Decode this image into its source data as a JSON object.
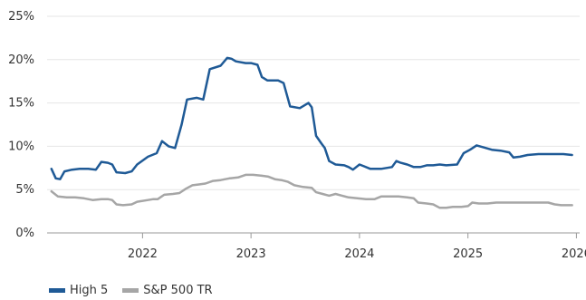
{
  "chart_data": {
    "type": "line",
    "title": "",
    "xlabel": "",
    "ylabel": "",
    "xlim": [
      2021.12,
      2026.03
    ],
    "ylim": [
      0,
      25
    ],
    "grid": true,
    "legend_position": "bottom-left",
    "y_tick_labels": [
      "0%",
      "5%",
      "10%",
      "15%",
      "20%",
      "25%"
    ],
    "y_tick_values": [
      0,
      5,
      10,
      15,
      20,
      25
    ],
    "x_tick_labels": [
      "2022",
      "2023",
      "2024",
      "2025",
      "2026"
    ],
    "x_tick_values": [
      2022,
      2023,
      2024,
      2025,
      2026
    ],
    "series": [
      {
        "name": "High 5",
        "color": "#1f5a96",
        "points": [
          [
            2021.16,
            7.4
          ],
          [
            2021.2,
            6.3
          ],
          [
            2021.24,
            6.2
          ],
          [
            2021.28,
            7.1
          ],
          [
            2021.35,
            7.3
          ],
          [
            2021.42,
            7.4
          ],
          [
            2021.5,
            7.4
          ],
          [
            2021.57,
            7.3
          ],
          [
            2021.62,
            8.2
          ],
          [
            2021.68,
            8.1
          ],
          [
            2021.72,
            7.9
          ],
          [
            2021.76,
            7.0
          ],
          [
            2021.84,
            6.9
          ],
          [
            2021.9,
            7.1
          ],
          [
            2021.95,
            7.9
          ],
          [
            2022.05,
            8.8
          ],
          [
            2022.13,
            9.2
          ],
          [
            2022.18,
            10.6
          ],
          [
            2022.24,
            10.0
          ],
          [
            2022.3,
            9.8
          ],
          [
            2022.36,
            12.5
          ],
          [
            2022.41,
            15.4
          ],
          [
            2022.5,
            15.6
          ],
          [
            2022.56,
            15.4
          ],
          [
            2022.62,
            18.9
          ],
          [
            2022.72,
            19.3
          ],
          [
            2022.78,
            20.2
          ],
          [
            2022.82,
            20.1
          ],
          [
            2022.86,
            19.8
          ],
          [
            2022.95,
            19.6
          ],
          [
            2023.0,
            19.6
          ],
          [
            2023.06,
            19.4
          ],
          [
            2023.1,
            18.0
          ],
          [
            2023.15,
            17.6
          ],
          [
            2023.25,
            17.6
          ],
          [
            2023.3,
            17.3
          ],
          [
            2023.36,
            14.6
          ],
          [
            2023.45,
            14.4
          ],
          [
            2023.53,
            15.0
          ],
          [
            2023.56,
            14.5
          ],
          [
            2023.6,
            11.2
          ],
          [
            2023.65,
            10.3
          ],
          [
            2023.68,
            9.8
          ],
          [
            2023.72,
            8.3
          ],
          [
            2023.78,
            7.9
          ],
          [
            2023.86,
            7.8
          ],
          [
            2023.9,
            7.6
          ],
          [
            2023.94,
            7.3
          ],
          [
            2024.0,
            7.9
          ],
          [
            2024.04,
            7.7
          ],
          [
            2024.1,
            7.4
          ],
          [
            2024.2,
            7.4
          ],
          [
            2024.3,
            7.6
          ],
          [
            2024.34,
            8.3
          ],
          [
            2024.38,
            8.1
          ],
          [
            2024.44,
            7.9
          ],
          [
            2024.5,
            7.6
          ],
          [
            2024.56,
            7.6
          ],
          [
            2024.62,
            7.8
          ],
          [
            2024.68,
            7.8
          ],
          [
            2024.74,
            7.9
          ],
          [
            2024.8,
            7.8
          ],
          [
            2024.9,
            7.9
          ],
          [
            2024.96,
            9.2
          ],
          [
            2025.02,
            9.6
          ],
          [
            2025.08,
            10.1
          ],
          [
            2025.14,
            9.9
          ],
          [
            2025.22,
            9.6
          ],
          [
            2025.3,
            9.5
          ],
          [
            2025.38,
            9.3
          ],
          [
            2025.42,
            8.7
          ],
          [
            2025.48,
            8.8
          ],
          [
            2025.55,
            9.0
          ],
          [
            2025.65,
            9.1
          ],
          [
            2025.72,
            9.1
          ],
          [
            2025.8,
            9.1
          ],
          [
            2025.88,
            9.1
          ],
          [
            2025.96,
            9.0
          ]
        ]
      },
      {
        "name": "S&P 500 TR",
        "color": "#a6a6a6",
        "points": [
          [
            2021.16,
            4.8
          ],
          [
            2021.22,
            4.2
          ],
          [
            2021.3,
            4.1
          ],
          [
            2021.38,
            4.1
          ],
          [
            2021.46,
            4.0
          ],
          [
            2021.54,
            3.8
          ],
          [
            2021.62,
            3.9
          ],
          [
            2021.68,
            3.9
          ],
          [
            2021.72,
            3.8
          ],
          [
            2021.76,
            3.3
          ],
          [
            2021.82,
            3.2
          ],
          [
            2021.9,
            3.3
          ],
          [
            2021.95,
            3.6
          ],
          [
            2022.05,
            3.8
          ],
          [
            2022.1,
            3.9
          ],
          [
            2022.14,
            3.9
          ],
          [
            2022.2,
            4.4
          ],
          [
            2022.28,
            4.5
          ],
          [
            2022.34,
            4.6
          ],
          [
            2022.4,
            5.1
          ],
          [
            2022.46,
            5.5
          ],
          [
            2022.52,
            5.6
          ],
          [
            2022.58,
            5.7
          ],
          [
            2022.65,
            6.0
          ],
          [
            2022.72,
            6.1
          ],
          [
            2022.8,
            6.3
          ],
          [
            2022.88,
            6.4
          ],
          [
            2022.95,
            6.7
          ],
          [
            2023.02,
            6.7
          ],
          [
            2023.1,
            6.6
          ],
          [
            2023.16,
            6.5
          ],
          [
            2023.22,
            6.2
          ],
          [
            2023.28,
            6.1
          ],
          [
            2023.34,
            5.9
          ],
          [
            2023.4,
            5.5
          ],
          [
            2023.48,
            5.3
          ],
          [
            2023.56,
            5.2
          ],
          [
            2023.6,
            4.7
          ],
          [
            2023.66,
            4.5
          ],
          [
            2023.72,
            4.3
          ],
          [
            2023.78,
            4.5
          ],
          [
            2023.84,
            4.3
          ],
          [
            2023.9,
            4.1
          ],
          [
            2023.98,
            4.0
          ],
          [
            2024.06,
            3.9
          ],
          [
            2024.14,
            3.9
          ],
          [
            2024.2,
            4.2
          ],
          [
            2024.28,
            4.2
          ],
          [
            2024.36,
            4.2
          ],
          [
            2024.44,
            4.1
          ],
          [
            2024.5,
            4.0
          ],
          [
            2024.54,
            3.5
          ],
          [
            2024.62,
            3.4
          ],
          [
            2024.68,
            3.3
          ],
          [
            2024.74,
            2.9
          ],
          [
            2024.8,
            2.9
          ],
          [
            2024.86,
            3.0
          ],
          [
            2024.94,
            3.0
          ],
          [
            2025.0,
            3.1
          ],
          [
            2025.04,
            3.5
          ],
          [
            2025.1,
            3.4
          ],
          [
            2025.18,
            3.4
          ],
          [
            2025.26,
            3.5
          ],
          [
            2025.34,
            3.5
          ],
          [
            2025.42,
            3.5
          ],
          [
            2025.5,
            3.5
          ],
          [
            2025.58,
            3.5
          ],
          [
            2025.66,
            3.5
          ],
          [
            2025.74,
            3.5
          ],
          [
            2025.8,
            3.3
          ],
          [
            2025.86,
            3.2
          ],
          [
            2025.92,
            3.2
          ],
          [
            2025.96,
            3.2
          ]
        ]
      }
    ]
  }
}
